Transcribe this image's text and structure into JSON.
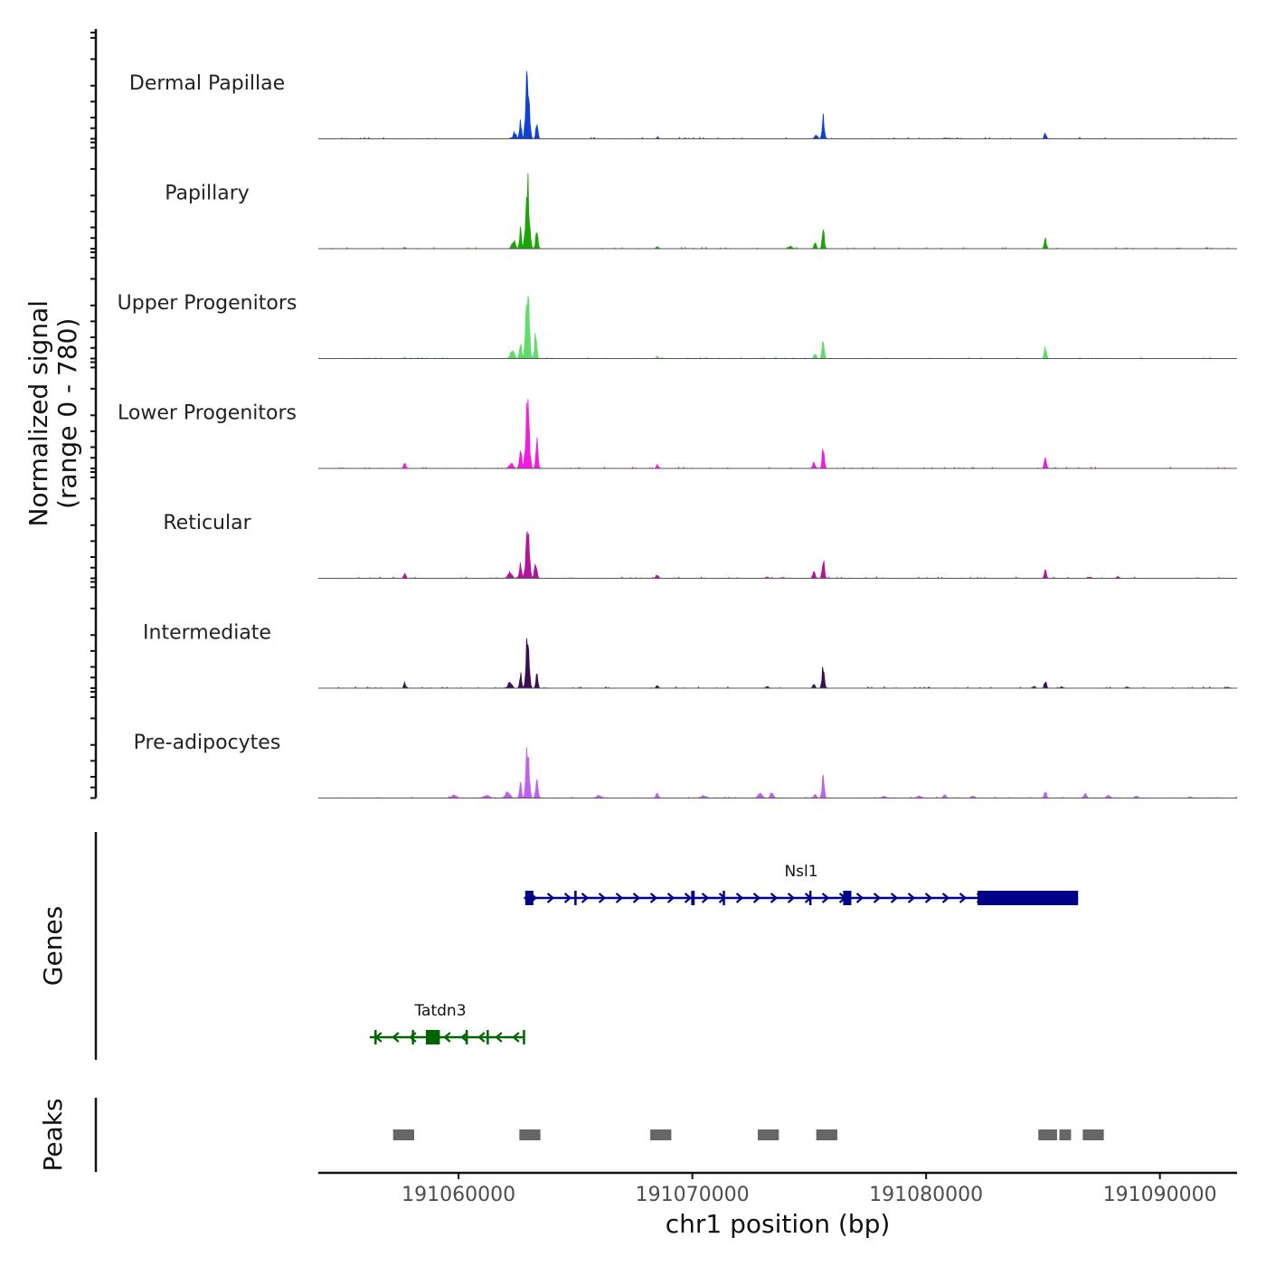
{
  "chart_data": {
    "type": "area",
    "title": "",
    "xlabel": "chr1 position (bp)",
    "ylabel": "Normalized signal\n(range 0 - 780)",
    "ylabel_lines": [
      "Normalized signal",
      "(range 0 - 780)"
    ],
    "xlim": [
      191054000,
      191093300
    ],
    "ylim": [
      0,
      780
    ],
    "x_ticks": [
      191060000,
      191070000,
      191080000,
      191090000
    ],
    "x_tick_labels": [
      "191060000",
      "191070000",
      "191080000",
      "191090000"
    ],
    "tracks": [
      {
        "name": "Dermal Papillae",
        "color": "#1140d9",
        "peaks": [
          [
            191062950,
            780,
            70
          ],
          [
            191062650,
            210,
            40
          ],
          [
            191063350,
            230,
            40
          ],
          [
            191062400,
            80,
            60
          ],
          [
            191075600,
            260,
            45
          ],
          [
            191075300,
            40,
            60
          ],
          [
            191085100,
            70,
            45
          ],
          [
            191068500,
            15,
            50
          ],
          [
            191080800,
            10,
            60
          ]
        ]
      },
      {
        "name": "Papillary",
        "color": "#1aa600",
        "peaks": [
          [
            191062950,
            780,
            75
          ],
          [
            191062650,
            230,
            40
          ],
          [
            191063350,
            250,
            45
          ],
          [
            191062350,
            90,
            70
          ],
          [
            191075600,
            230,
            45
          ],
          [
            191075250,
            60,
            50
          ],
          [
            191074200,
            25,
            80
          ],
          [
            191085100,
            110,
            45
          ],
          [
            191068500,
            25,
            50
          ],
          [
            191057700,
            15,
            40
          ]
        ]
      },
      {
        "name": "Upper Progenitors",
        "color": "#5fdc6a",
        "peaks": [
          [
            191062950,
            780,
            70
          ],
          [
            191062650,
            200,
            40
          ],
          [
            191063300,
            320,
            45
          ],
          [
            191062300,
            100,
            80
          ],
          [
            191075600,
            230,
            45
          ],
          [
            191075250,
            50,
            50
          ],
          [
            191085100,
            130,
            45
          ],
          [
            191068500,
            25,
            50
          ],
          [
            191057700,
            15,
            40
          ]
        ]
      },
      {
        "name": "Lower Progenitors",
        "color": "#f21bdf",
        "peaks": [
          [
            191062950,
            780,
            70
          ],
          [
            191062650,
            250,
            45
          ],
          [
            191063350,
            320,
            45
          ],
          [
            191062250,
            60,
            80
          ],
          [
            191075600,
            260,
            45
          ],
          [
            191075200,
            70,
            50
          ],
          [
            191085100,
            120,
            45
          ],
          [
            191068500,
            40,
            50
          ],
          [
            191057700,
            60,
            50
          ]
        ]
      },
      {
        "name": "Reticular",
        "color": "#b3139d",
        "peaks": [
          [
            191062950,
            560,
            70
          ],
          [
            191062650,
            180,
            45
          ],
          [
            191063300,
            180,
            50
          ],
          [
            191062200,
            80,
            80
          ],
          [
            191075600,
            230,
            45
          ],
          [
            191075200,
            70,
            50
          ],
          [
            191085100,
            100,
            45
          ],
          [
            191068500,
            40,
            50
          ],
          [
            191057700,
            50,
            50
          ],
          [
            191073200,
            15,
            60
          ],
          [
            191087000,
            15,
            60
          ],
          [
            191088200,
            20,
            60
          ]
        ]
      },
      {
        "name": "Intermediate",
        "color": "#3b0d57",
        "peaks": [
          [
            191062950,
            680,
            60
          ],
          [
            191062650,
            180,
            40
          ],
          [
            191063350,
            150,
            45
          ],
          [
            191062200,
            70,
            80
          ],
          [
            191075600,
            250,
            50
          ],
          [
            191075200,
            40,
            50
          ],
          [
            191085100,
            80,
            45
          ],
          [
            191068500,
            30,
            50
          ],
          [
            191057700,
            60,
            40
          ],
          [
            191073200,
            15,
            60
          ],
          [
            191084600,
            15,
            60
          ],
          [
            191085800,
            15,
            60
          ],
          [
            191088600,
            15,
            60
          ]
        ]
      },
      {
        "name": "Pre-adipocytes",
        "color": "#c05ef2",
        "peaks": [
          [
            191062950,
            680,
            60
          ],
          [
            191062650,
            200,
            40
          ],
          [
            191063350,
            190,
            50
          ],
          [
            191062100,
            80,
            90
          ],
          [
            191061200,
            30,
            120
          ],
          [
            191059800,
            35,
            100
          ],
          [
            191075600,
            240,
            45
          ],
          [
            191075250,
            50,
            50
          ],
          [
            191085100,
            80,
            45
          ],
          [
            191068500,
            55,
            50
          ],
          [
            191072900,
            50,
            90
          ],
          [
            191073400,
            70,
            60
          ],
          [
            191080800,
            40,
            60
          ],
          [
            191079700,
            25,
            90
          ],
          [
            191082000,
            20,
            80
          ],
          [
            191086800,
            45,
            60
          ],
          [
            191087800,
            30,
            70
          ],
          [
            191089000,
            20,
            70
          ],
          [
            191066000,
            25,
            100
          ],
          [
            191070500,
            25,
            100
          ],
          [
            191078200,
            20,
            80
          ],
          [
            191091300,
            15,
            60
          ]
        ]
      }
    ],
    "genes": [
      {
        "name": "Nsl1",
        "strand": "+",
        "color": "#00008b",
        "start": 191062800,
        "end": 191086500,
        "exons": [
          [
            191062850,
            191063200
          ],
          [
            191064950,
            191065050
          ],
          [
            191069950,
            191070100
          ],
          [
            191071300,
            191071350
          ],
          [
            191075000,
            191075080
          ],
          [
            191076450,
            191076800
          ],
          [
            191082200,
            191086500
          ]
        ]
      },
      {
        "name": "Tatdn3",
        "strand": "-",
        "color": "#006400",
        "start": 191056200,
        "end": 191062800,
        "exons": [
          [
            191056400,
            191056450
          ],
          [
            191058000,
            191058050
          ],
          [
            191058600,
            191059200
          ],
          [
            191060300,
            191060350
          ],
          [
            191061200,
            191061250
          ],
          [
            191062750,
            191062800
          ]
        ]
      }
    ],
    "peak_regions": [
      [
        191057200,
        191058100
      ],
      [
        191062600,
        191063500
      ],
      [
        191068200,
        191069100
      ],
      [
        191072800,
        191073700
      ],
      [
        191075300,
        191076200
      ],
      [
        191084800,
        191085600
      ],
      [
        191085700,
        191086200
      ],
      [
        191086700,
        191087600
      ]
    ],
    "panel_labels": {
      "genes": "Genes",
      "peaks": "Peaks"
    }
  },
  "colors": {
    "axis": "#111111",
    "baseline": "#555555",
    "peak_region": "#666666",
    "background": "#ffffff"
  }
}
